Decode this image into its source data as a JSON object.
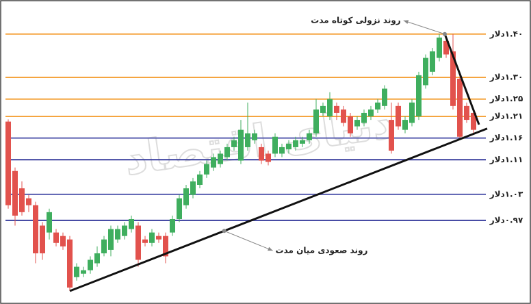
{
  "chart_data": {
    "type": "candlestick",
    "watermark": "دنیای اقتصاد",
    "ylim": [
      0.796,
      1.466
    ],
    "xlim": [
      -1,
      70
    ],
    "yticks": [
      {
        "value": 1.4,
        "label": "۱.۴۰دلار"
      },
      {
        "value": 1.3,
        "label": "۱.۳۰دلار"
      },
      {
        "value": 1.25,
        "label": "۱.۲۵دلار"
      },
      {
        "value": 1.21,
        "label": "۱.۲۱دلار"
      },
      {
        "value": 1.16,
        "label": "۱.۱۶دلار"
      },
      {
        "value": 1.11,
        "label": "۱.۱۱دلار"
      },
      {
        "value": 1.03,
        "label": "۱.۰۳دلار"
      },
      {
        "value": 0.97,
        "label": "۰.۹۷دلار"
      }
    ],
    "ytick_colors": [
      "#f5a540",
      "#f5a540",
      "#f5a540",
      "#f5a540",
      "#5a5fb0",
      "#3a3f9e",
      "#5a5fb0",
      "#3a3f9e"
    ],
    "up_color": "#3fae5e",
    "down_color": "#e2524d",
    "open": [
      1.198,
      1.084,
      1.044,
      1.021,
      1.005,
      0.958,
      0.942,
      0.942,
      0.934,
      0.926,
      0.839,
      0.847,
      0.855,
      0.871,
      0.894,
      0.902,
      0.926,
      0.934,
      0.95,
      0.958,
      0.926,
      0.918,
      0.934,
      0.934,
      0.942,
      0.973,
      1.005,
      1.029,
      1.052,
      1.076,
      1.092,
      1.1,
      1.116,
      1.139,
      1.108,
      1.139,
      1.155,
      1.139,
      1.124,
      1.124,
      1.124,
      1.134,
      1.139,
      1.147,
      1.155,
      1.171,
      1.218,
      1.21,
      1.234,
      1.226,
      1.21,
      1.187,
      1.195,
      1.21,
      1.226,
      1.234,
      1.202,
      1.234,
      1.179,
      1.195,
      1.21,
      1.282,
      1.313,
      1.345,
      1.384,
      1.36,
      1.297,
      1.234,
      1.218
    ],
    "close": [
      1.005,
      0.981,
      0.989,
      1.005,
      0.894,
      0.894,
      0.989,
      0.918,
      0.91,
      0.815,
      0.863,
      0.855,
      0.879,
      0.894,
      0.926,
      0.95,
      0.95,
      0.958,
      0.973,
      0.879,
      0.918,
      0.942,
      0.926,
      0.887,
      0.973,
      1.021,
      1.044,
      1.06,
      1.076,
      1.1,
      1.116,
      1.124,
      1.139,
      1.155,
      1.179,
      1.171,
      1.171,
      1.108,
      1.105,
      1.163,
      1.139,
      1.147,
      1.155,
      1.155,
      1.171,
      1.226,
      1.234,
      1.25,
      1.218,
      1.195,
      1.171,
      1.202,
      1.218,
      1.226,
      1.242,
      1.274,
      1.131,
      1.187,
      1.202,
      1.242,
      1.305,
      1.345,
      1.36,
      1.392,
      1.353,
      1.234,
      1.163,
      1.202,
      1.179
    ],
    "high": [
      1.203,
      1.092,
      1.06,
      1.029,
      1.013,
      0.966,
      0.997,
      0.95,
      0.942,
      0.934,
      0.871,
      0.863,
      0.887,
      0.91,
      0.934,
      0.958,
      0.958,
      0.966,
      0.981,
      0.966,
      0.934,
      0.95,
      0.942,
      0.942,
      0.981,
      1.029,
      1.052,
      1.068,
      1.084,
      1.108,
      1.124,
      1.131,
      1.147,
      1.163,
      1.202,
      1.242,
      1.179,
      1.147,
      1.131,
      1.171,
      1.147,
      1.155,
      1.163,
      1.163,
      1.179,
      1.25,
      1.242,
      1.266,
      1.242,
      1.234,
      1.218,
      1.21,
      1.226,
      1.234,
      1.25,
      1.282,
      1.242,
      1.242,
      1.21,
      1.25,
      1.313,
      1.353,
      1.368,
      1.4,
      1.392,
      1.4,
      1.305,
      1.242,
      1.226
    ],
    "low": [
      0.997,
      0.958,
      0.981,
      0.989,
      0.871,
      0.879,
      0.926,
      0.91,
      0.902,
      0.807,
      0.831,
      0.839,
      0.847,
      0.863,
      0.887,
      0.887,
      0.918,
      0.926,
      0.942,
      0.863,
      0.91,
      0.91,
      0.918,
      0.871,
      0.934,
      0.966,
      0.997,
      1.021,
      1.044,
      1.068,
      1.084,
      1.092,
      1.108,
      1.131,
      1.1,
      1.131,
      1.147,
      1.1,
      1.097,
      1.116,
      1.116,
      1.124,
      1.131,
      1.139,
      1.147,
      1.163,
      1.21,
      1.202,
      1.202,
      1.187,
      1.163,
      1.179,
      1.187,
      1.202,
      1.218,
      1.226,
      1.124,
      1.179,
      1.171,
      1.187,
      1.202,
      1.274,
      1.305,
      1.337,
      1.345,
      1.226,
      1.155,
      1.195,
      1.171
    ],
    "trendlines": [
      {
        "label": "روند صعودی میان مدت",
        "x": [
          9,
          70
        ],
        "y": [
          0.807,
          1.182
        ]
      },
      {
        "label": "روند نزولی کوتاه مدت",
        "x": [
          63.8,
          68.8
        ],
        "y": [
          1.4,
          1.191
        ]
      }
    ]
  }
}
